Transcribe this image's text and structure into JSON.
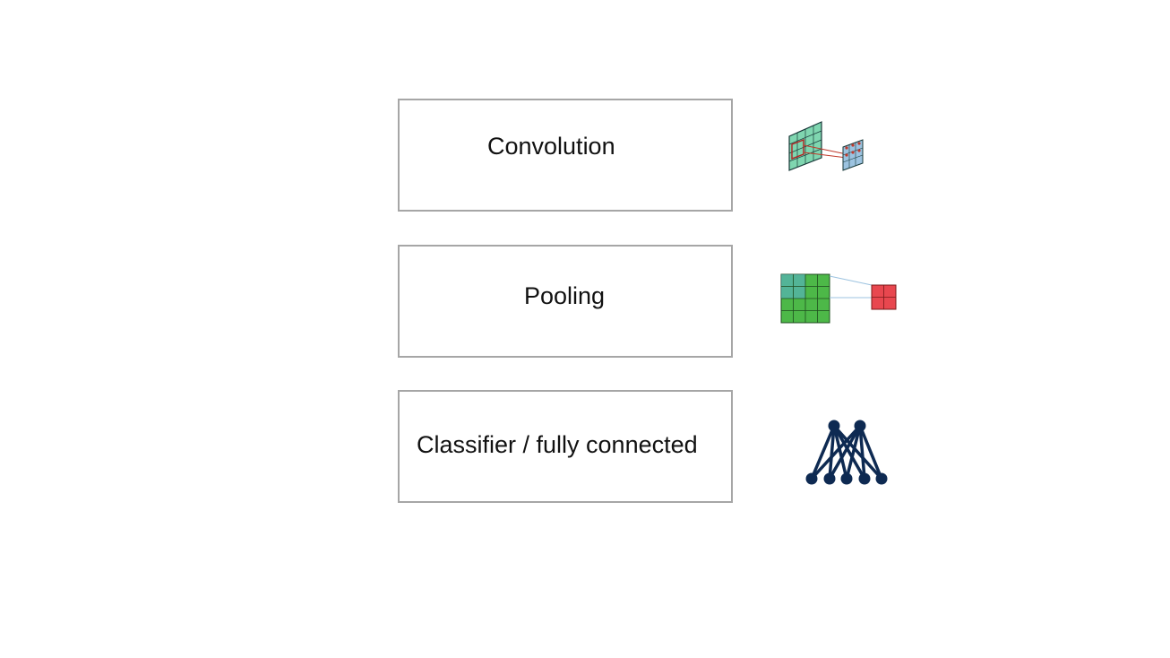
{
  "layers": {
    "convolution": {
      "label": "Convolution",
      "icon": "convolution-icon"
    },
    "pooling": {
      "label": "Pooling",
      "icon": "pooling-icon"
    },
    "classifier": {
      "label": "Classifier / fully connected",
      "icon": "neural-network-icon"
    }
  },
  "colors": {
    "box_border": "#a6a6a6",
    "conv_input": "#7fd6b0",
    "conv_output": "#9cc3e0",
    "pool_input": "#4db848",
    "pool_output": "#e8474f",
    "network": "#0e2a52"
  }
}
